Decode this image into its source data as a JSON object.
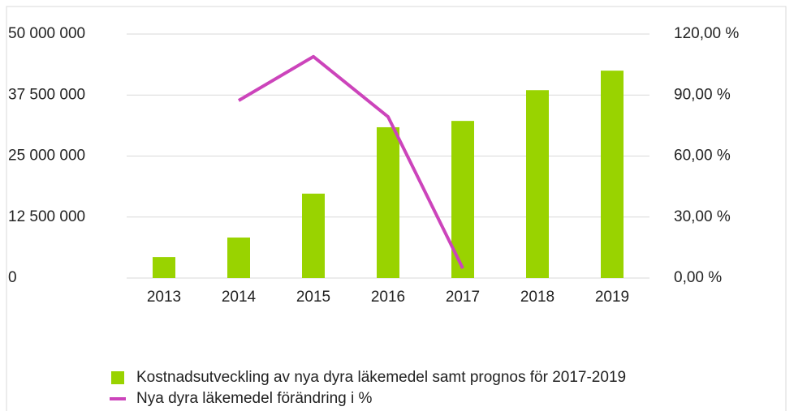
{
  "chart_data": {
    "type": "bar_line",
    "categories": [
      "2013",
      "2014",
      "2015",
      "2016",
      "2017",
      "2018",
      "2019"
    ],
    "series": [
      {
        "name": "Kostnadsutveckling av nya dyra läkemedel samt prognos för 2017-2019",
        "type": "bar",
        "color": "#99d300",
        "values": [
          4300000,
          8300000,
          17300000,
          30900000,
          32200000,
          38500000,
          42500000
        ]
      },
      {
        "name": "Nya dyra läkemedel förändring i %",
        "type": "line",
        "axis": "y2",
        "color": "#cc44bb",
        "values": [
          null,
          87.3,
          108.9,
          79.3,
          4.8,
          null,
          null
        ]
      }
    ],
    "ylim": [
      0,
      50000000
    ],
    "yticks": [
      0,
      {
        "value": 12500000,
        "label": "12 500 000"
      },
      {
        "value": 25000000,
        "label": "25 000 000"
      },
      {
        "value": 37500000,
        "label": "37 500 000"
      },
      {
        "value": 50000000,
        "label": "50 000 000"
      }
    ],
    "y2lim": [
      0,
      120
    ],
    "y2ticks": [
      {
        "value": 0,
        "label": "0,00 %"
      },
      {
        "value": 30,
        "label": "30,00 %"
      },
      {
        "value": 60,
        "label": "60,00 %"
      },
      {
        "value": 90,
        "label": "90,00 %"
      },
      {
        "value": 120,
        "label": "120,00 %"
      }
    ],
    "grid": true
  }
}
